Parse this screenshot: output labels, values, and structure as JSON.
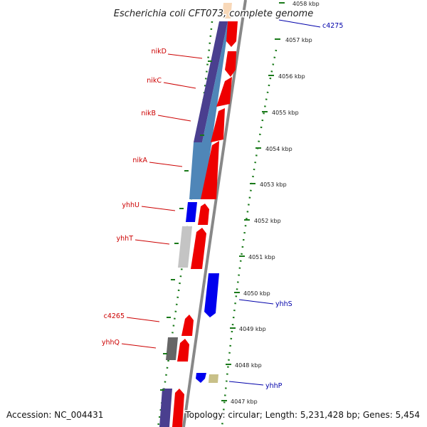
{
  "title": "Escherichia coli CFT073, complete genome",
  "accession": "Accession: NC_004431",
  "summary": "Topology: circular; Length: 5,231,428 bp; Genes: 5,454",
  "colors": {
    "forward_label": "#cc0000",
    "reverse_label": "#0000aa",
    "backbone": "#888888",
    "tick": "#1a7a1a"
  },
  "scale": {
    "unit": "kbp",
    "ticks": [
      "4058 kbp",
      "4057 kbp",
      "4056 kbp",
      "4055 kbp",
      "4054 kbp",
      "4053 kbp",
      "4052 kbp",
      "4051 kbp",
      "4050 kbp",
      "4049 kbp",
      "4048 kbp",
      "4047 kbp"
    ]
  },
  "gene_labels": {
    "left": [
      "nikD",
      "nikC",
      "nikB",
      "nikA",
      "yhhU",
      "yhhT",
      "c4265",
      "yhhQ"
    ],
    "right": [
      "c4275",
      "yhhS",
      "yhhP"
    ]
  },
  "feature_colors": {
    "cds_forward": "#ee0000",
    "cds_reverse": "#0000ee",
    "category_purple": "#4a3f8f",
    "category_steelblue": "#4f86b8",
    "category_lightgray": "#c4c4c4",
    "category_darkgray": "#666666",
    "category_khaki": "#c8c088",
    "category_peach": "#f8d8b8"
  }
}
